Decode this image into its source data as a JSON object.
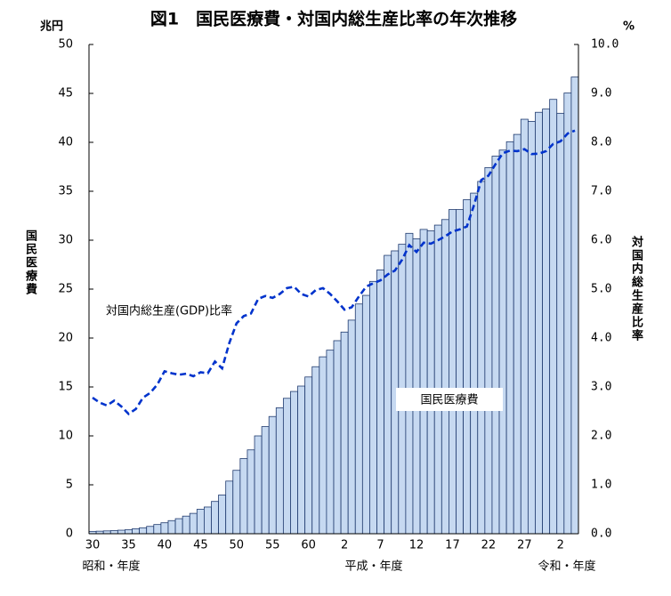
{
  "chart_data": {
    "type": "bar",
    "title": "図1　国民医療費・対国内総生産比率の年次推移",
    "y_unit": "兆円",
    "y2_unit": "%",
    "ylabel": "国民医療費",
    "y2label": "対国内総生産比率",
    "era_labels": [
      "昭和・年度",
      "平成・年度",
      "令和・年度"
    ],
    "categories": [
      "30",
      null,
      null,
      null,
      null,
      "35",
      null,
      null,
      null,
      null,
      "40",
      null,
      null,
      null,
      null,
      "45",
      null,
      null,
      null,
      null,
      "50",
      null,
      null,
      null,
      null,
      "55",
      null,
      null,
      null,
      null,
      "60",
      null,
      null,
      null,
      null,
      "2",
      null,
      null,
      null,
      null,
      "7",
      null,
      null,
      null,
      null,
      "12",
      null,
      null,
      null,
      null,
      "17",
      null,
      null,
      null,
      null,
      "22",
      null,
      null,
      null,
      null,
      "27",
      null,
      null,
      null,
      null,
      "2",
      null,
      null
    ],
    "series": [
      {
        "name": "国民医療費",
        "type": "bar",
        "color": "#c6d9f1",
        "edge": "#1f3a6e",
        "values": [
          0.24,
          0.26,
          0.29,
          0.32,
          0.36,
          0.41,
          0.51,
          0.61,
          0.75,
          0.94,
          1.12,
          1.34,
          1.54,
          1.8,
          2.08,
          2.5,
          2.73,
          3.3,
          3.96,
          5.38,
          6.48,
          7.68,
          8.57,
          10.0,
          10.95,
          11.98,
          12.87,
          13.84,
          14.54,
          15.09,
          16.02,
          17.07,
          18.08,
          18.76,
          19.73,
          20.61,
          21.83,
          23.48,
          24.36,
          25.79,
          26.96,
          28.45,
          28.91,
          29.58,
          30.7,
          30.14,
          31.1,
          30.95,
          31.54,
          32.11,
          33.13,
          33.13,
          34.14,
          34.81,
          36.01,
          37.42,
          38.59,
          39.21,
          40.06,
          40.81,
          42.36,
          42.14,
          43.07,
          43.4,
          44.39,
          42.97,
          45.04,
          46.67
        ]
      },
      {
        "name": "対国内総生産(GDP)比率",
        "type": "line",
        "axis": "y2",
        "color": "#0033cc",
        "dashed": true,
        "values": [
          2.78,
          2.68,
          2.62,
          2.72,
          2.6,
          2.45,
          2.55,
          2.78,
          2.88,
          3.05,
          3.32,
          3.28,
          3.25,
          3.27,
          3.22,
          3.3,
          3.28,
          3.52,
          3.38,
          3.9,
          4.3,
          4.45,
          4.5,
          4.8,
          4.86,
          4.82,
          4.9,
          5.02,
          5.05,
          4.9,
          4.85,
          4.98,
          5.02,
          4.9,
          4.75,
          4.58,
          4.63,
          4.85,
          5.05,
          5.12,
          5.18,
          5.3,
          5.38,
          5.6,
          5.9,
          5.76,
          5.95,
          5.93,
          6.0,
          6.08,
          6.18,
          6.22,
          6.28,
          6.72,
          7.23,
          7.32,
          7.56,
          7.78,
          7.83,
          7.82,
          7.86,
          7.76,
          7.77,
          7.82,
          7.97,
          8.02,
          8.18,
          8.24
        ]
      }
    ],
    "ylim": [
      0,
      50
    ],
    "yticks": [
      0,
      5,
      10,
      15,
      20,
      25,
      30,
      35,
      40,
      45,
      50
    ],
    "y2lim": [
      0,
      10
    ],
    "y2ticks": [
      {
        "value": 0,
        "label": "0.0"
      },
      {
        "value": 1,
        "label": "1.0"
      },
      {
        "value": 2,
        "label": "2.0"
      },
      {
        "value": 3,
        "label": "3.0"
      },
      {
        "value": 4,
        "label": "4.0"
      },
      {
        "value": 5,
        "label": "5.0"
      },
      {
        "value": 6,
        "label": "6.0"
      },
      {
        "value": 7,
        "label": "7.0"
      },
      {
        "value": 8,
        "label": "8.0"
      },
      {
        "value": 9,
        "label": "9.0"
      },
      {
        "value": 10,
        "label": "10.0"
      }
    ],
    "grid": false
  }
}
